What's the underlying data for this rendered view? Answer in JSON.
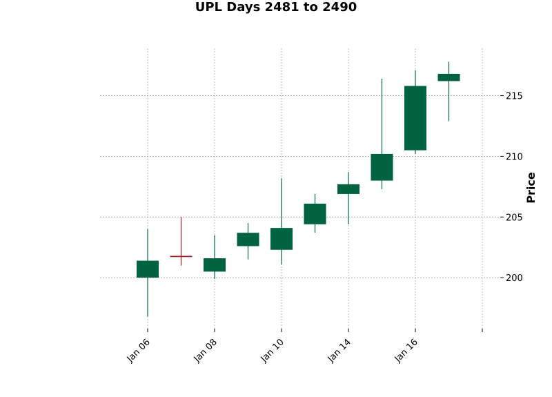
{
  "chart_data": {
    "type": "candlestick",
    "title": "UPL Days 2481 to 2490",
    "ylabel": "Price",
    "xlabel": "",
    "ylim": [
      195.8,
      218.9
    ],
    "yticks": [
      200,
      205,
      210,
      215
    ],
    "grid": true,
    "colors": {
      "up": "#006340",
      "down": "#a02128"
    },
    "xtick_labels": [
      "Jan 06",
      "Jan 08",
      "Jan 10",
      "Jan 14",
      "Jan 16",
      ""
    ],
    "candles": [
      {
        "date": "Jan 06",
        "open": 200.0,
        "high": 204.0,
        "low": 196.8,
        "close": 201.4
      },
      {
        "date": "Jan 07",
        "open": 201.8,
        "high": 205.0,
        "low": 201.0,
        "close": 201.7
      },
      {
        "date": "Jan 08",
        "open": 200.5,
        "high": 203.5,
        "low": 199.9,
        "close": 201.6
      },
      {
        "date": "Jan 09",
        "open": 202.6,
        "high": 204.5,
        "low": 201.5,
        "close": 203.7
      },
      {
        "date": "Jan 10",
        "open": 202.3,
        "high": 208.2,
        "low": 201.1,
        "close": 204.1
      },
      {
        "date": "Jan 13",
        "open": 204.4,
        "high": 206.9,
        "low": 203.7,
        "close": 206.1
      },
      {
        "date": "Jan 14",
        "open": 206.9,
        "high": 208.7,
        "low": 204.4,
        "close": 207.7
      },
      {
        "date": "Jan 15",
        "open": 208.0,
        "high": 216.4,
        "low": 207.3,
        "close": 210.2
      },
      {
        "date": "Jan 16",
        "open": 210.5,
        "high": 217.1,
        "low": 210.2,
        "close": 215.8
      },
      {
        "date": "Jan 17",
        "open": 216.2,
        "high": 217.8,
        "low": 212.9,
        "close": 216.8
      }
    ]
  }
}
